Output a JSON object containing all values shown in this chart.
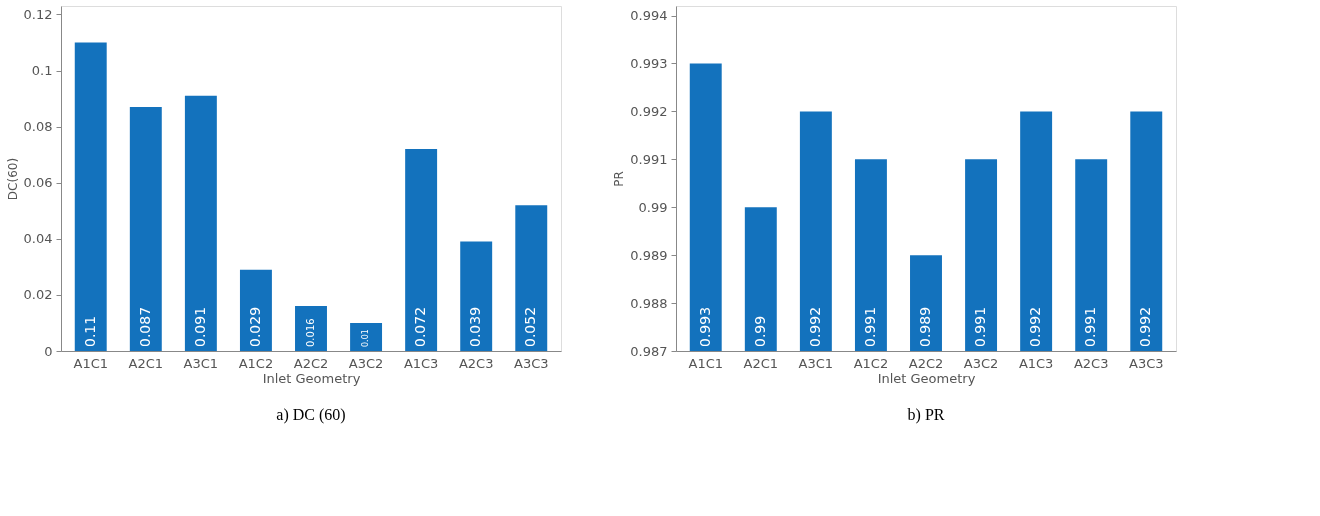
{
  "chart_data": [
    {
      "type": "bar",
      "title": "a) DC (60)",
      "xlabel": "Inlet Geometry",
      "ylabel": "DC(60)",
      "categories": [
        "A1C1",
        "A2C1",
        "A3C1",
        "A1C2",
        "A2C2",
        "A3C2",
        "A1C3",
        "A2C3",
        "A3C3"
      ],
      "values": [
        0.11,
        0.087,
        0.091,
        0.029,
        0.016,
        0.01,
        0.072,
        0.039,
        0.052
      ],
      "data_labels": true,
      "color": "#1372bd",
      "ylim": [
        0,
        0.123
      ],
      "yticks": [
        0,
        0.02,
        0.04,
        0.06,
        0.08,
        0.1,
        0.12
      ],
      "grid": false
    },
    {
      "type": "bar",
      "title": "b) PR",
      "xlabel": "Inlet Geometry",
      "ylabel": "PR",
      "categories": [
        "A1C1",
        "A2C1",
        "A3C1",
        "A1C2",
        "A2C2",
        "A3C2",
        "A1C3",
        "A2C3",
        "A3C3"
      ],
      "values": [
        0.993,
        0.99,
        0.992,
        0.991,
        0.989,
        0.991,
        0.992,
        0.991,
        0.992
      ],
      "data_labels": true,
      "color": "#1372bd",
      "ylim": [
        0.987,
        0.9942
      ],
      "yticks": [
        0.987,
        0.988,
        0.989,
        0.99,
        0.991,
        0.992,
        0.993,
        0.994
      ],
      "grid": false
    }
  ]
}
